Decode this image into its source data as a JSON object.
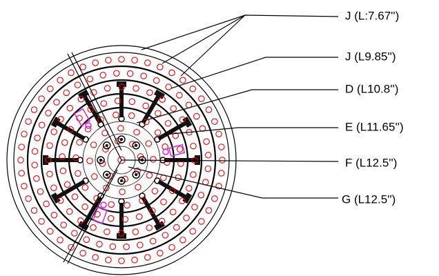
{
  "labels": [
    {
      "text": "J (L:7.67'')"
    },
    {
      "text": "J (L9.85'')"
    },
    {
      "text": "D (L10.8'')"
    },
    {
      "text": "E (L11.65'')"
    },
    {
      "text": "F (L12.5'')"
    },
    {
      "text": "G (L12.5'')"
    }
  ]
}
